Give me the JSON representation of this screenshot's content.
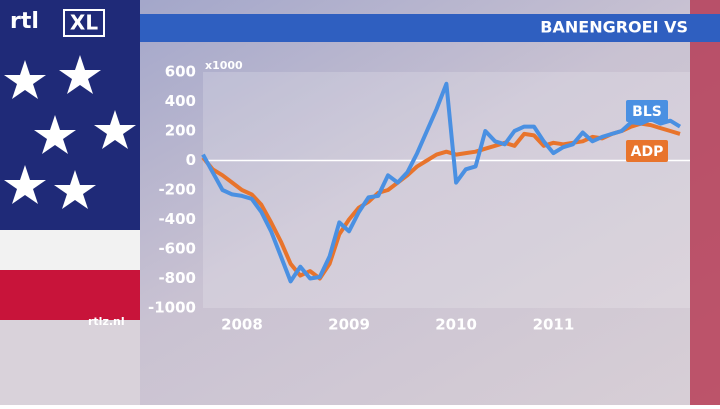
{
  "chart_data": {
    "type": "line",
    "title": "BANENGROEI VS",
    "y_label": "x1000",
    "logo": "rtl",
    "logo_badge": "XL",
    "source": "rtlz.nl",
    "categories": [
      null,
      null,
      null,
      null,
      "2008",
      null,
      null,
      null,
      null,
      null,
      null,
      null,
      null,
      null,
      null,
      "2009",
      null,
      null,
      null,
      null,
      null,
      null,
      null,
      null,
      null,
      null,
      "2010",
      null,
      null,
      null,
      null,
      null,
      null,
      null,
      null,
      null,
      "2011",
      null,
      null,
      null,
      null,
      null,
      null,
      null,
      null,
      null,
      null,
      null,
      null,
      null
    ],
    "series": [
      {
        "name": "BLS",
        "color": "#4a90e2",
        "values": [
          40,
          -80,
          -200,
          -230,
          -240,
          -260,
          -350,
          -480,
          -650,
          -820,
          -720,
          -800,
          -790,
          -650,
          -420,
          -480,
          -350,
          -250,
          -240,
          -100,
          -150,
          -80,
          50,
          200,
          350,
          520,
          -150,
          -60,
          -40,
          200,
          130,
          110,
          200,
          230,
          230,
          130,
          50,
          90,
          110,
          190,
          130,
          160,
          180,
          200,
          260,
          250,
          280,
          250,
          270,
          230
        ]
      },
      {
        "name": "ADP",
        "color": "#e8742c",
        "values": [
          20,
          -60,
          -100,
          -150,
          -200,
          -230,
          -300,
          -420,
          -550,
          -700,
          -780,
          -750,
          -800,
          -700,
          -500,
          -400,
          -320,
          -280,
          -220,
          -200,
          -150,
          -100,
          -40,
          0,
          40,
          60,
          40,
          50,
          60,
          80,
          100,
          120,
          100,
          180,
          170,
          100,
          120,
          110,
          120,
          130,
          160,
          150,
          180,
          200,
          230,
          250,
          240,
          220,
          200,
          180
        ]
      }
    ],
    "ylim": [
      -1000,
      600
    ],
    "yticks": [
      600,
      400,
      200,
      0,
      -200,
      -400,
      -600,
      -800,
      -1000
    ]
  }
}
